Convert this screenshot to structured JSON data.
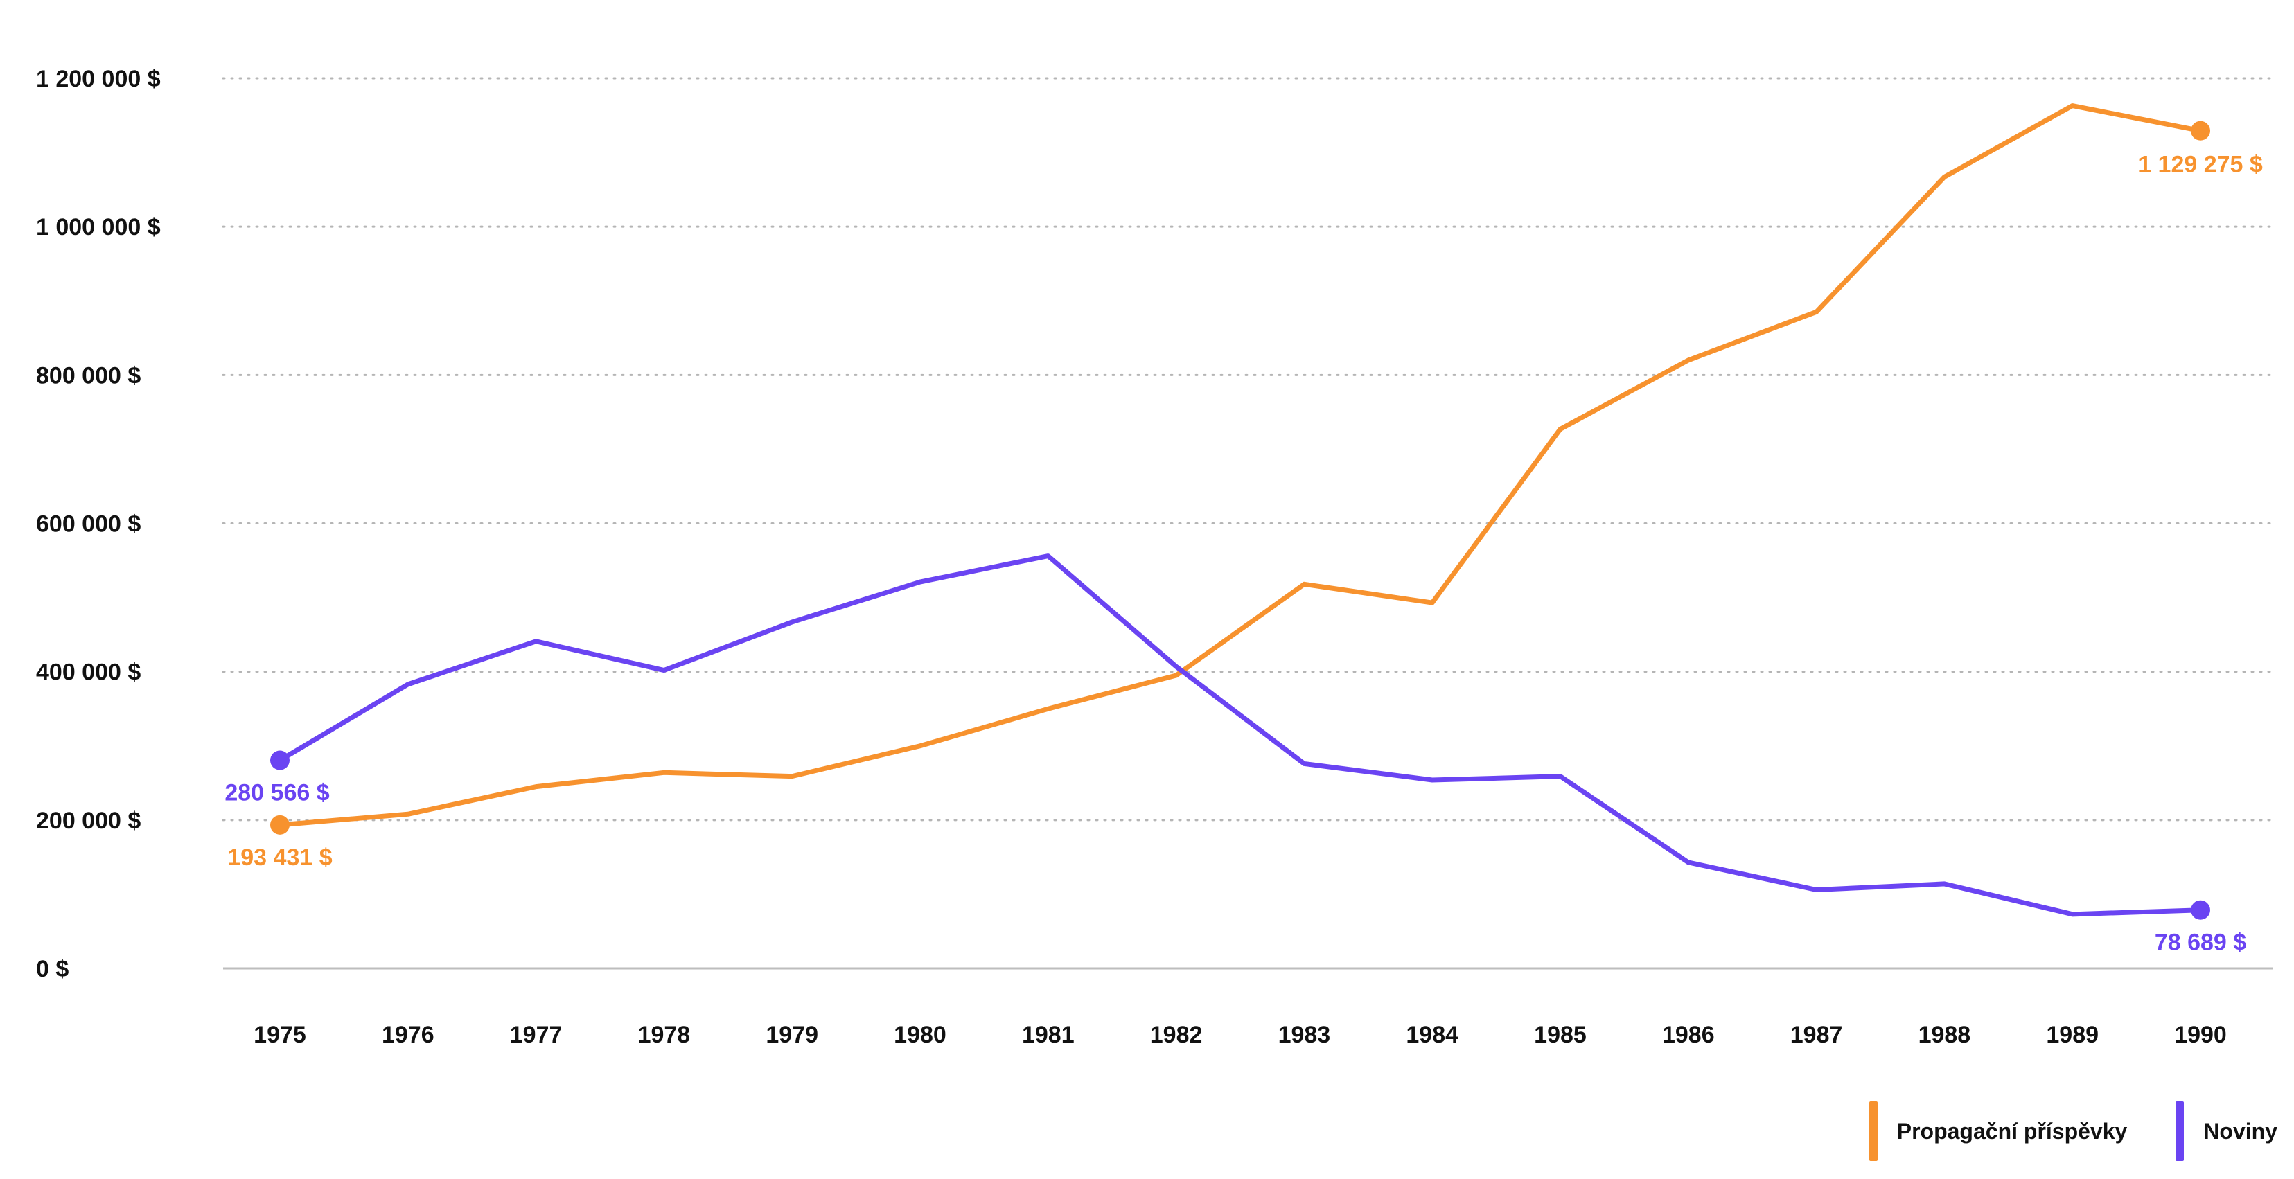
{
  "chart_data": {
    "type": "line",
    "title": "",
    "xlabel": "",
    "ylabel": "",
    "categories": [
      "1975",
      "1976",
      "1977",
      "1978",
      "1979",
      "1980",
      "1981",
      "1982",
      "1983",
      "1984",
      "1985",
      "1986",
      "1987",
      "1988",
      "1989",
      "1990"
    ],
    "ylim": [
      0,
      1200000
    ],
    "yticks": [
      0,
      200000,
      400000,
      600000,
      800000,
      1000000,
      1200000
    ],
    "ytick_labels": [
      "0 $",
      "200 000 $",
      "400 000 $",
      "600 000 $",
      "800 000 $",
      "1 000 000 $",
      "1 200 000 $"
    ],
    "grid": "horizontal dotted",
    "legend_position": "bottom-right",
    "series": [
      {
        "name": "Propagační příspěvky",
        "color": "#F7922E",
        "values": [
          193431,
          208000,
          245000,
          264000,
          259000,
          300000,
          350000,
          395000,
          518000,
          493000,
          727000,
          820000,
          885000,
          1067000,
          1163000,
          1129275
        ],
        "start_label": "193 431 $",
        "end_label": "1 129 275 $"
      },
      {
        "name": "Noviny",
        "color": "#6A44F2",
        "values": [
          280566,
          383000,
          441000,
          402000,
          467000,
          521000,
          556000,
          407000,
          276000,
          254000,
          259000,
          143000,
          106000,
          114000,
          73000,
          78689
        ],
        "start_label": "280 566 $",
        "end_label": "78 689 $"
      }
    ]
  }
}
